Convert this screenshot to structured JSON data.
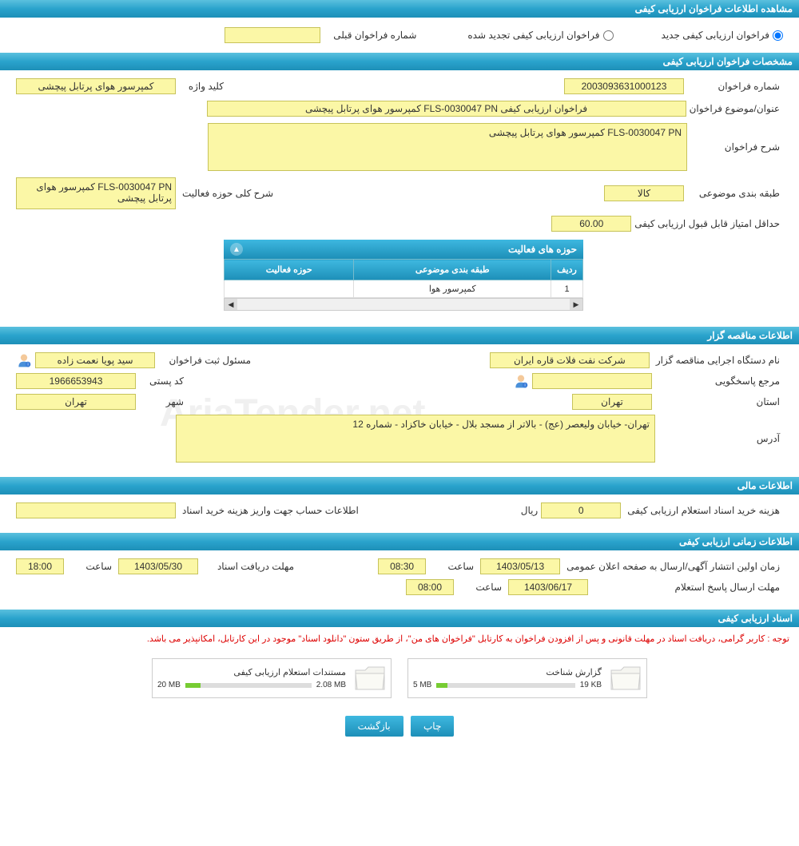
{
  "headers": {
    "view_info": "مشاهده اطلاعات فراخوان ارزیابی کیفی",
    "specs": "مشخصات فراخوان ارزیابی کیفی",
    "tenderer_info": "اطلاعات مناقصه گزار",
    "financial": "اطلاعات مالی",
    "timing": "اطلاعات زمانی ارزیابی کیفی",
    "documents": "اسناد ارزیابی کیفی"
  },
  "radios": {
    "new_call": "فراخوان ارزیابی کیفی جدید",
    "renewed_call": "فراخوان ارزیابی کیفی تجدید شده",
    "prev_number_label": "شماره فراخوان قبلی"
  },
  "specs": {
    "number_label": "شماره فراخوان",
    "number_value": "2003093631000123",
    "keyword_label": "کلید واژه",
    "keyword_value": "کمپرسور هوای پرتابل پیچشی",
    "title_label": "عنوان/موضوع فراخوان",
    "title_value": "فراخوان ارزیابی کیفی FLS-0030047 PN کمپرسور هوای پرتابل پیچشی",
    "desc_label": "شرح فراخوان",
    "desc_value": "FLS-0030047 PN کمپرسور هوای پرتابل پیچشی",
    "category_label": "طبقه بندی موضوعی",
    "category_value": "کالا",
    "activity_scope_label": "شرح کلی حوزه فعالیت",
    "activity_scope_value": "FLS-0030047 PN کمپرسور هوای پرتابل پیچشی",
    "min_score_label": "حداقل امتیاز قابل قبول ارزیابی کیفی",
    "min_score_value": "60.00"
  },
  "activity_table": {
    "title": "حوزه های فعالیت",
    "col_row": "ردیف",
    "col_category": "طبقه بندی موضوعی",
    "col_activity": "حوزه فعالیت",
    "rows": [
      {
        "idx": "1",
        "category": "کمپرسور هوا",
        "activity": ""
      }
    ]
  },
  "tenderer": {
    "org_label": "نام دستگاه اجرایی مناقصه گزار",
    "org_value": "شرکت نفت فلات قاره ایران",
    "registrar_label": "مسئول ثبت فراخوان",
    "registrar_value": "سید پویا نعمت زاده",
    "responder_label": "مرجع پاسخگویی",
    "responder_value": "",
    "postal_label": "کد پستی",
    "postal_value": "1966653943",
    "province_label": "استان",
    "province_value": "تهران",
    "city_label": "شهر",
    "city_value": "تهران",
    "address_label": "آدرس",
    "address_value": "تهران- خیابان ولیعصر (عج) - بالاتر از مسجد بلال - خیابان خاکزاد - شماره 12"
  },
  "financial": {
    "cost_label": "هزینه خرید اسناد استعلام ارزیابی کیفی",
    "cost_value": "0",
    "rial": "ریال",
    "account_label": "اطلاعات حساب جهت واریز هزینه خرید اسناد",
    "account_value": ""
  },
  "timing": {
    "publish_label": "زمان اولین انتشار آگهی/ارسال به صفحه اعلان عمومی",
    "publish_date": "1403/05/13",
    "publish_time": "08:30",
    "deadline_label": "مهلت دریافت اسناد",
    "deadline_date": "1403/05/30",
    "deadline_time": "18:00",
    "response_label": "مهلت ارسال پاسخ استعلام",
    "response_date": "1403/06/17",
    "response_time": "08:00",
    "hour_label": "ساعت"
  },
  "documents": {
    "notice": "توجه : کاربر گرامی، دریافت اسناد در مهلت قانونی و پس از افزودن فراخوان به کارتابل \"فراخوان های من\"، از طریق ستون \"دانلود اسناد\" موجود در این کارتابل، امکانپذیر می باشد.",
    "file1_name": "گزارش شناخت",
    "file1_used": "19 KB",
    "file1_total": "5 MB",
    "file1_pct": 8,
    "file2_name": "مستندات استعلام ارزیابی کیفی",
    "file2_used": "2.08 MB",
    "file2_total": "20 MB",
    "file2_pct": 12
  },
  "buttons": {
    "print": "چاپ",
    "back": "بازگشت"
  },
  "watermark": "AriaTender.net",
  "colors": {
    "header_grad_top": "#5bc0de",
    "header_grad_bot": "#1d8fb8",
    "yellow_bg": "#fbf7a6",
    "yellow_border": "#c7c35a",
    "notice_color": "#d00"
  }
}
